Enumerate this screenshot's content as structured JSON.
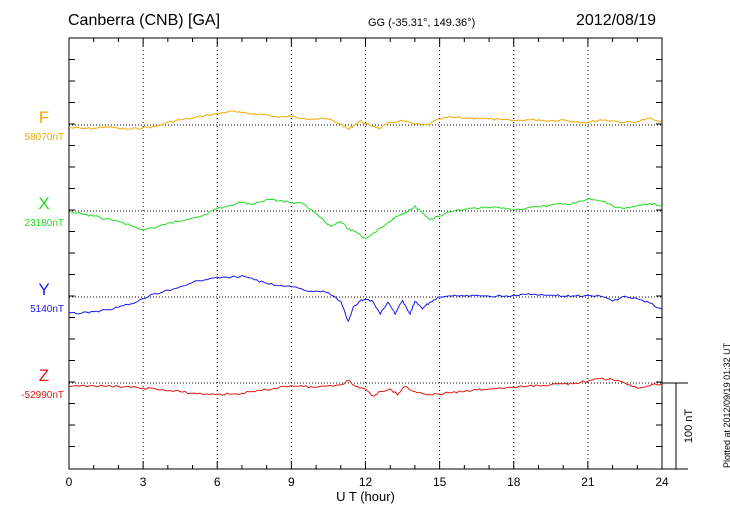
{
  "header": {
    "station": "Canberra (CNB)  [GA]",
    "coords": "GG (-35.31°, 149.36°)",
    "date": "2012/08/19"
  },
  "plotted_note": "Plotted at 2012/09/19 01:32 UT",
  "scale_label": "100 nT",
  "chart_data": {
    "type": "line",
    "xlabel": "U T (hour)",
    "xlim": [
      0,
      24
    ],
    "xticks": [
      "0",
      "3",
      "6",
      "9",
      "12",
      "15",
      "18",
      "21",
      "24"
    ],
    "scale_nT": 100,
    "series": [
      {
        "name": "F",
        "baseline_label": "58070nT",
        "baseline_nT": 58070,
        "color": "#f2a900",
        "x": [
          0,
          0.5,
          1,
          1.5,
          2,
          2.5,
          3,
          3.5,
          4,
          4.5,
          5,
          5.5,
          6,
          6.5,
          7,
          7.5,
          8,
          8.5,
          9,
          9.5,
          10,
          10.5,
          11,
          11.3,
          11.5,
          11.8,
          12,
          12.3,
          12.6,
          13,
          13.5,
          14,
          14.5,
          15,
          15.5,
          16,
          16.5,
          17,
          17.5,
          18,
          18.5,
          19,
          19.5,
          20,
          20.5,
          21,
          21.5,
          22,
          22.5,
          23,
          23.5,
          24
        ],
        "y": [
          -3,
          -4,
          -4,
          -2,
          -4,
          -5,
          -3,
          -2,
          3,
          6,
          8,
          11,
          13,
          16,
          14,
          13,
          12,
          9,
          10,
          8,
          7,
          7,
          1,
          -5,
          -1,
          5,
          1,
          -1,
          -4,
          3,
          5,
          1,
          0,
          7,
          9,
          8,
          8,
          7,
          6,
          5,
          6,
          6,
          5,
          6,
          4,
          3,
          6,
          5,
          3,
          4,
          8,
          2
        ]
      },
      {
        "name": "X",
        "baseline_label": "23180nT",
        "baseline_nT": 23180,
        "color": "#22dd22",
        "x": [
          0,
          0.5,
          1,
          1.5,
          2,
          2.5,
          3,
          3.5,
          4,
          4.5,
          5,
          5.5,
          6,
          6.5,
          7,
          7.5,
          8,
          8.5,
          9,
          9.5,
          10,
          10.3,
          10.6,
          11,
          11.3,
          11.6,
          12,
          12.3,
          12.6,
          13,
          13.3,
          13.6,
          14,
          14.3,
          14.6,
          15,
          15.5,
          16,
          16.5,
          17,
          17.5,
          18,
          18.5,
          19,
          19.5,
          20,
          20.5,
          21,
          21.5,
          22,
          22.5,
          23,
          23.5,
          24
        ],
        "y": [
          -2,
          -3,
          -6,
          -9,
          -12,
          -17,
          -22,
          -20,
          -14,
          -12,
          -8,
          -4,
          3,
          6,
          10,
          8,
          14,
          12,
          10,
          8,
          -3,
          -10,
          -18,
          -12,
          -21,
          -24,
          -32,
          -26,
          -20,
          -12,
          -6,
          -2,
          6,
          -2,
          -10,
          -6,
          -1,
          2,
          3,
          4,
          3,
          2,
          3,
          5,
          7,
          8,
          9,
          14,
          12,
          6,
          3,
          6,
          9,
          5
        ]
      },
      {
        "name": "Y",
        "baseline_label": "5140nT",
        "baseline_nT": 5140,
        "color": "#1a1aee",
        "x": [
          0,
          0.5,
          1,
          1.5,
          2,
          2.5,
          3,
          3.5,
          4,
          4.5,
          5,
          5.5,
          6,
          6.5,
          7,
          7.5,
          8,
          8.5,
          9,
          9.5,
          10,
          10.5,
          11,
          11.3,
          11.5,
          11.8,
          12,
          12.3,
          12.6,
          12.9,
          13.2,
          13.5,
          13.8,
          14,
          14.3,
          14.6,
          15,
          15.5,
          16,
          16.5,
          17,
          17.5,
          18,
          18.5,
          19,
          19.5,
          20,
          20.5,
          21,
          21.5,
          22,
          22.5,
          23,
          23.5,
          24
        ],
        "y": [
          -18,
          -19,
          -17,
          -15,
          -12,
          -8,
          -2,
          4,
          8,
          12,
          17,
          20,
          23,
          22,
          25,
          20,
          16,
          13,
          12,
          8,
          7,
          5,
          -5,
          -28,
          -12,
          -4,
          -3,
          -5,
          -20,
          -6,
          -20,
          -4,
          -20,
          -5,
          -14,
          -6,
          0,
          1,
          1,
          2,
          1,
          1,
          2,
          3,
          2,
          2,
          1,
          1,
          2,
          1,
          -5,
          1,
          -2,
          -7,
          -14
        ]
      },
      {
        "name": "Z",
        "baseline_label": "-52990nT",
        "baseline_nT": -52990,
        "color": "#e01818",
        "x": [
          0,
          0.5,
          1,
          1.5,
          2,
          2.5,
          3,
          3.5,
          4,
          4.5,
          5,
          5.5,
          6,
          6.5,
          7,
          7.5,
          8,
          8.5,
          9,
          9.5,
          10,
          10.5,
          11,
          11.3,
          11.6,
          12,
          12.3,
          12.6,
          13,
          13.3,
          13.6,
          14,
          14.5,
          15,
          15.5,
          16,
          16.5,
          17,
          17.5,
          18,
          18.5,
          19,
          19.5,
          20,
          20.5,
          21,
          21.5,
          22,
          22.5,
          23,
          23.5,
          24
        ],
        "y": [
          -5,
          -3,
          -3,
          -4,
          -4,
          -5,
          -6,
          -7,
          -9,
          -10,
          -12,
          -13,
          -13,
          -13,
          -12,
          -10,
          -8,
          -5,
          -3,
          -4,
          -5,
          -3,
          -2,
          3,
          -4,
          -7,
          -15,
          -10,
          -7,
          -14,
          -4,
          -10,
          -14,
          -13,
          -11,
          -10,
          -8,
          -7,
          -6,
          -5,
          -4,
          -3,
          -2,
          -1,
          0,
          2,
          5,
          4,
          0,
          -6,
          -3,
          -1
        ]
      }
    ]
  }
}
